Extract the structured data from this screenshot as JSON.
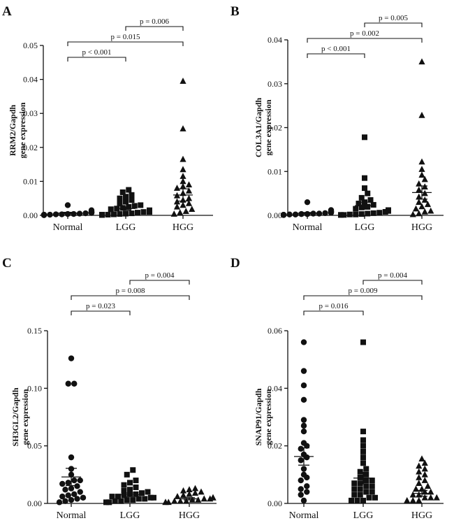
{
  "chart_data": [
    {
      "type": "scatter",
      "panel_letter": "A",
      "ylabel_line1": "RRM2/Gapdh",
      "ylabel_line2": "gene expression",
      "categories": [
        "Normal",
        "LGG",
        "HGG"
      ],
      "marker_shapes": [
        "circle",
        "square",
        "triangle"
      ],
      "ylim": [
        0,
        0.05
      ],
      "yticks": [
        0,
        0.01,
        0.02,
        0.03,
        0.04,
        0.05
      ],
      "ytick_labels": [
        "0.00",
        "0.01",
        "0.02",
        "0.03",
        "0.04",
        "0.05"
      ],
      "series": [
        {
          "name": "Normal",
          "values": [
            0.003,
            0.0015,
            0.0012,
            0.001,
            0.0009,
            0.0008,
            0.0007,
            0.0006,
            0.0005,
            0.0004,
            0.0004,
            0.0003,
            0.0003,
            0.0002,
            0.0002,
            0.0001,
            0.0001,
            0.0001,
            0.0001,
            0.0001
          ],
          "mean": 0.0007,
          "sem": 0.0002
        },
        {
          "name": "LGG",
          "values": [
            0.0075,
            0.0068,
            0.006,
            0.0055,
            0.005,
            0.0045,
            0.004,
            0.0035,
            0.003,
            0.0028,
            0.0025,
            0.0022,
            0.002,
            0.0018,
            0.0015,
            0.0012,
            0.001,
            0.001,
            0.0008,
            0.0006,
            0.0005,
            0.0004,
            0.0003,
            0.0002,
            0.0002,
            0.0001,
            0.0001
          ],
          "mean": 0.002,
          "sem": 0.0005
        },
        {
          "name": "HGG",
          "values": [
            0.0395,
            0.0255,
            0.0165,
            0.0135,
            0.0115,
            0.01,
            0.009,
            0.0085,
            0.008,
            0.0072,
            0.0065,
            0.0058,
            0.005,
            0.0045,
            0.004,
            0.0035,
            0.003,
            0.0025,
            0.0018,
            0.0012,
            0.0008,
            0.0004
          ],
          "mean": 0.006,
          "sem": 0.0018
        }
      ],
      "comparisons": [
        {
          "from": "Normal",
          "to": "LGG",
          "label": "p < 0.001"
        },
        {
          "from": "Normal",
          "to": "HGG",
          "label": "p = 0.015"
        },
        {
          "from": "LGG",
          "to": "HGG",
          "label": "p = 0.006"
        }
      ]
    },
    {
      "type": "scatter",
      "panel_letter": "B",
      "ylabel_line1": "COL3A1/Gapdh",
      "ylabel_line2": "gene expression",
      "categories": [
        "Normal",
        "LGG",
        "HGG"
      ],
      "marker_shapes": [
        "circle",
        "square",
        "triangle"
      ],
      "ylim": [
        0,
        0.04
      ],
      "yticks": [
        0,
        0.01,
        0.02,
        0.03,
        0.04
      ],
      "ytick_labels": [
        "0.00",
        "0.01",
        "0.02",
        "0.03",
        "0.04"
      ],
      "series": [
        {
          "name": "Normal",
          "values": [
            0.003,
            0.0012,
            0.001,
            0.0009,
            0.0008,
            0.0007,
            0.0006,
            0.0005,
            0.0004,
            0.0004,
            0.0003,
            0.0003,
            0.0002,
            0.0002,
            0.0001,
            0.0001,
            0.0001,
            0.0001,
            0.0001,
            0.0001
          ],
          "mean": 0.0005,
          "sem": 0.00015
        },
        {
          "name": "LGG",
          "values": [
            0.0178,
            0.0085,
            0.0062,
            0.005,
            0.004,
            0.0035,
            0.003,
            0.0027,
            0.0024,
            0.002,
            0.0018,
            0.0015,
            0.0012,
            0.001,
            0.0008,
            0.0006,
            0.0005,
            0.0004,
            0.0003,
            0.0002,
            0.0002,
            0.0001,
            0.0001,
            0.0001
          ],
          "mean": 0.0022,
          "sem": 0.0008
        },
        {
          "name": "HGG",
          "values": [
            0.035,
            0.0228,
            0.0122,
            0.0105,
            0.0092,
            0.0082,
            0.0072,
            0.0065,
            0.0058,
            0.005,
            0.0042,
            0.0035,
            0.003,
            0.0025,
            0.002,
            0.0015,
            0.001,
            0.0008,
            0.0004,
            0.0002
          ],
          "mean": 0.0052,
          "sem": 0.0015
        }
      ],
      "comparisons": [
        {
          "from": "Normal",
          "to": "LGG",
          "label": "p < 0.001"
        },
        {
          "from": "Normal",
          "to": "HGG",
          "label": "p = 0.002"
        },
        {
          "from": "LGG",
          "to": "HGG",
          "label": "p = 0.005"
        }
      ]
    },
    {
      "type": "scatter",
      "panel_letter": "C",
      "ylabel_line1": "SH3GL2/Gapdh",
      "ylabel_line2": "gene expression",
      "categories": [
        "Normal",
        "LGG",
        "HGG"
      ],
      "marker_shapes": [
        "circle",
        "square",
        "triangle"
      ],
      "ylim": [
        0,
        0.15
      ],
      "yticks": [
        0,
        0.05,
        0.1,
        0.15
      ],
      "ytick_labels": [
        "0.00",
        "0.05",
        "0.10",
        "0.15"
      ],
      "series": [
        {
          "name": "Normal",
          "values": [
            0.126,
            0.104,
            0.104,
            0.04,
            0.03,
            0.025,
            0.02,
            0.02,
            0.018,
            0.017,
            0.015,
            0.013,
            0.012,
            0.01,
            0.008,
            0.007,
            0.006,
            0.005,
            0.004,
            0.003,
            0.002,
            0.001
          ],
          "mean": 0.023,
          "sem": 0.0075
        },
        {
          "name": "LGG",
          "values": [
            0.029,
            0.025,
            0.02,
            0.018,
            0.016,
            0.014,
            0.012,
            0.011,
            0.01,
            0.009,
            0.008,
            0.008,
            0.007,
            0.006,
            0.006,
            0.005,
            0.005,
            0.004,
            0.004,
            0.003,
            0.003,
            0.002,
            0.002,
            0.001,
            0.001
          ],
          "mean": 0.0075,
          "sem": 0.0015
        },
        {
          "name": "HGG",
          "values": [
            0.013,
            0.012,
            0.011,
            0.01,
            0.009,
            0.008,
            0.007,
            0.006,
            0.005,
            0.005,
            0.004,
            0.004,
            0.003,
            0.003,
            0.002,
            0.002,
            0.002,
            0.001,
            0.001,
            0.001
          ],
          "mean": 0.004,
          "sem": 0.001
        }
      ],
      "comparisons": [
        {
          "from": "Normal",
          "to": "LGG",
          "label": "p = 0.023"
        },
        {
          "from": "Normal",
          "to": "HGG",
          "label": "p = 0.008"
        },
        {
          "from": "LGG",
          "to": "HGG",
          "label": "p = 0.004"
        }
      ]
    },
    {
      "type": "scatter",
      "panel_letter": "D",
      "ylabel_line1": "SNAP91/Gapdh",
      "ylabel_line2": "gene expression",
      "categories": [
        "Normal",
        "LGG",
        "HGG"
      ],
      "marker_shapes": [
        "circle",
        "square",
        "triangle"
      ],
      "ylim": [
        0,
        0.06
      ],
      "yticks": [
        0,
        0.02,
        0.04,
        0.06
      ],
      "ytick_labels": [
        "0.00",
        "0.02",
        "0.04",
        "0.06"
      ],
      "series": [
        {
          "name": "Normal",
          "values": [
            0.056,
            0.046,
            0.041,
            0.036,
            0.029,
            0.027,
            0.025,
            0.021,
            0.02,
            0.019,
            0.017,
            0.016,
            0.015,
            0.012,
            0.01,
            0.009,
            0.008,
            0.006,
            0.005,
            0.004,
            0.003,
            0.001
          ],
          "mean": 0.0163,
          "sem": 0.003
        },
        {
          "name": "LGG",
          "values": [
            0.056,
            0.025,
            0.022,
            0.02,
            0.018,
            0.016,
            0.014,
            0.012,
            0.011,
            0.01,
            0.009,
            0.008,
            0.008,
            0.007,
            0.007,
            0.006,
            0.006,
            0.005,
            0.005,
            0.004,
            0.004,
            0.003,
            0.003,
            0.002,
            0.002,
            0.001,
            0.001,
            0.001
          ],
          "mean": 0.0088,
          "sem": 0.002
        },
        {
          "name": "HGG",
          "values": [
            0.0155,
            0.014,
            0.013,
            0.012,
            0.011,
            0.01,
            0.009,
            0.008,
            0.007,
            0.006,
            0.005,
            0.005,
            0.004,
            0.004,
            0.003,
            0.003,
            0.002,
            0.002,
            0.002,
            0.001,
            0.001,
            0.001
          ],
          "mean": 0.0035,
          "sem": 0.001
        }
      ],
      "comparisons": [
        {
          "from": "Normal",
          "to": "LGG",
          "label": "p = 0.016"
        },
        {
          "from": "Normal",
          "to": "HGG",
          "label": "p = 0.009"
        },
        {
          "from": "LGG",
          "to": "HGG",
          "label": "p = 0.004"
        }
      ]
    }
  ]
}
